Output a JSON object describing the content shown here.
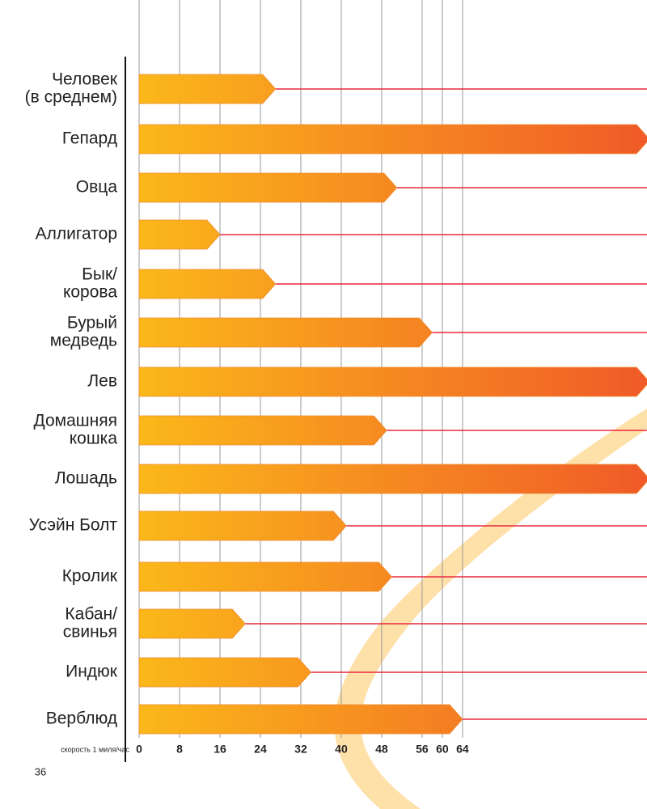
{
  "chart_data": {
    "type": "bar",
    "orientation": "horizontal",
    "categories": [
      [
        "Человек",
        "(в среднем)"
      ],
      [
        "Гепард"
      ],
      [
        "Овца"
      ],
      [
        "Аллигатор"
      ],
      [
        "Бык/",
        "корова"
      ],
      [
        "Бурый",
        "медведь"
      ],
      [
        "Лев"
      ],
      [
        "Домашняя",
        "кошка"
      ],
      [
        "Лошадь"
      ],
      [
        "Усэйн Болт"
      ],
      [
        "Кролик"
      ],
      [
        "Кабан/",
        "свинья"
      ],
      [
        "Индюк"
      ],
      [
        "Верблюд"
      ]
    ],
    "values": [
      27,
      101,
      51,
      16,
      27,
      58,
      101,
      49,
      101,
      41,
      50,
      21,
      34,
      64
    ],
    "colors": [
      "#fbb81a",
      "#f05a28"
    ],
    "line_color": "#e8283c",
    "xlabel": "скорость 1 миля/час",
    "xlim": [
      0,
      100.5
    ],
    "xticks": [
      0,
      8,
      16,
      24,
      32,
      40,
      48,
      56,
      60,
      64
    ],
    "grid": true,
    "page_number": "36"
  }
}
